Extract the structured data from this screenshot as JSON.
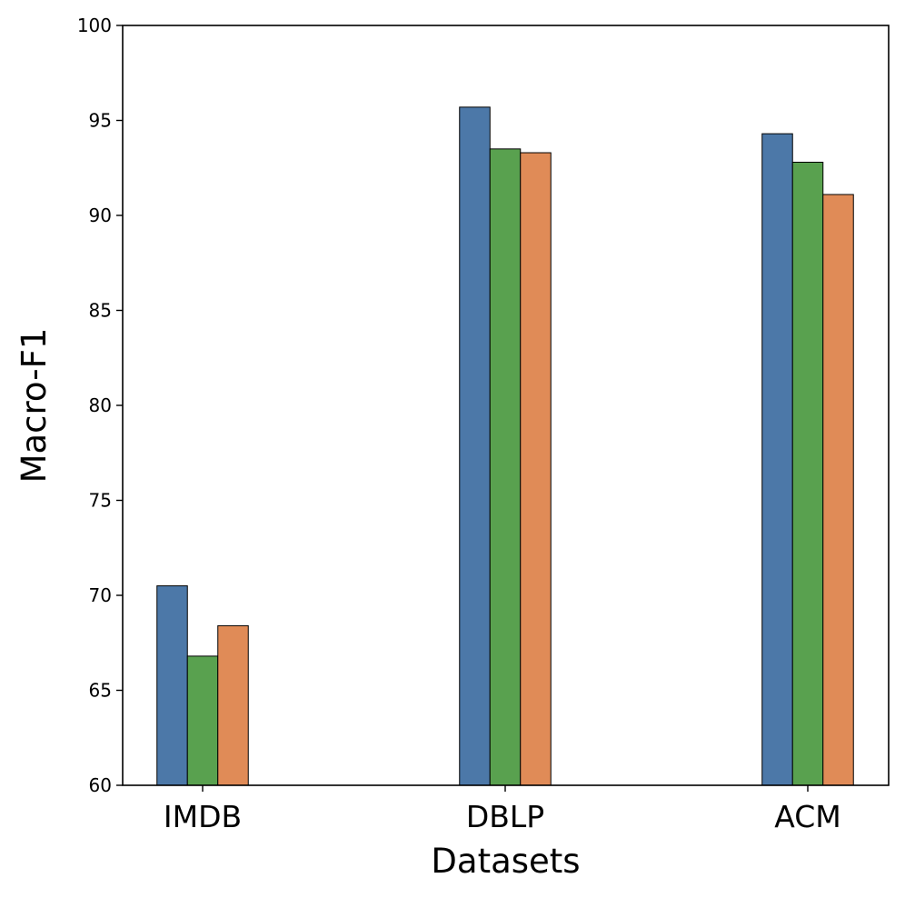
{
  "chart_data": {
    "type": "bar",
    "title": "",
    "xlabel": "Datasets",
    "ylabel": "Macro-F1",
    "categories": [
      "IMDB",
      "DBLP",
      "ACM"
    ],
    "ylim": [
      60,
      100
    ],
    "yticks": [
      60,
      65,
      70,
      75,
      80,
      85,
      90,
      95,
      100
    ],
    "grid": false,
    "legend": "none",
    "series": [
      {
        "name": "series-1",
        "color": "#4c78a8",
        "values": [
          70.5,
          95.7,
          94.3
        ]
      },
      {
        "name": "series-2",
        "color": "#59a14f",
        "values": [
          66.8,
          93.5,
          92.8
        ]
      },
      {
        "name": "series-3",
        "color": "#e08b57",
        "values": [
          68.4,
          93.3,
          91.1
        ]
      }
    ]
  }
}
